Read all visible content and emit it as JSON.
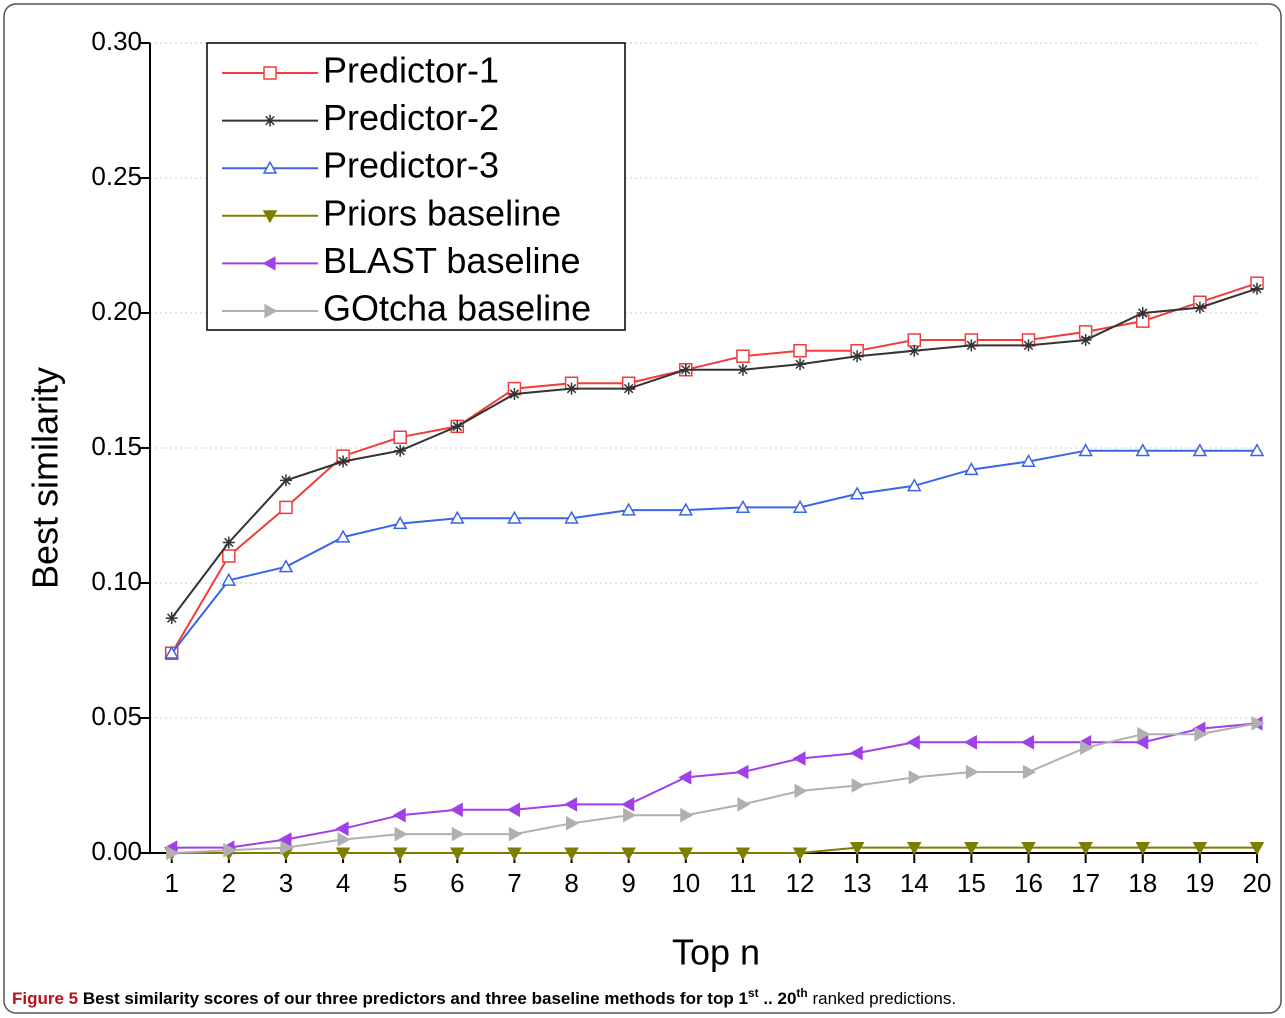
{
  "chart_data": {
    "type": "line",
    "y_label": "Best similarity",
    "x_label": "Top n",
    "x": [
      1,
      2,
      3,
      4,
      5,
      6,
      7,
      8,
      9,
      10,
      11,
      12,
      13,
      14,
      15,
      16,
      17,
      18,
      19,
      20
    ],
    "xlim": [
      0.62,
      20
    ],
    "xticks": [
      1,
      2,
      3,
      4,
      5,
      6,
      7,
      8,
      9,
      10,
      11,
      12,
      13,
      14,
      15,
      16,
      17,
      18,
      19,
      20
    ],
    "ylim": [
      0,
      0.3
    ],
    "yticks": [
      {
        "value": 0,
        "label": "0.00"
      },
      {
        "value": 0.05,
        "label": "0.05"
      },
      {
        "value": 0.1,
        "label": "0.10"
      },
      {
        "value": 0.15,
        "label": "0.15"
      },
      {
        "value": 0.2,
        "label": "0.20"
      },
      {
        "value": 0.25,
        "label": "0.25"
      },
      {
        "value": 0.3,
        "label": "0.30"
      }
    ],
    "grid": true,
    "legend": "top-left",
    "series": [
      {
        "name": "Predictor-1",
        "color": "#f03c3c",
        "marker": "square-open",
        "values": [
          0.074,
          0.11,
          0.128,
          0.147,
          0.154,
          0.158,
          0.172,
          0.174,
          0.174,
          0.179,
          0.184,
          0.186,
          0.186,
          0.19,
          0.19,
          0.19,
          0.193,
          0.197,
          0.204,
          0.211
        ]
      },
      {
        "name": "Predictor-2",
        "color": "#333333",
        "marker": "asterisk",
        "values": [
          0.087,
          0.115,
          0.138,
          0.145,
          0.149,
          0.158,
          0.17,
          0.172,
          0.172,
          0.179,
          0.179,
          0.181,
          0.184,
          0.186,
          0.188,
          0.188,
          0.19,
          0.2,
          0.202,
          0.209
        ]
      },
      {
        "name": "Predictor-3",
        "color": "#3c64e6",
        "marker": "triangle-up-open",
        "values": [
          0.074,
          0.101,
          0.106,
          0.117,
          0.122,
          0.124,
          0.124,
          0.124,
          0.127,
          0.127,
          0.128,
          0.128,
          0.133,
          0.136,
          0.142,
          0.145,
          0.149,
          0.149,
          0.149,
          0.149
        ]
      },
      {
        "name": "Priors baseline",
        "color": "#7d7d00",
        "marker": "triangle-down",
        "values": [
          0,
          0,
          0,
          0,
          0,
          0,
          0,
          0,
          0,
          0,
          0,
          0,
          0.002,
          0.002,
          0.002,
          0.002,
          0.002,
          0.002,
          0.002,
          0.002
        ]
      },
      {
        "name": "BLAST baseline",
        "color": "#a040e8",
        "marker": "triangle-left",
        "values": [
          0.002,
          0.002,
          0.005,
          0.009,
          0.014,
          0.016,
          0.016,
          0.018,
          0.018,
          0.028,
          0.03,
          0.035,
          0.037,
          0.041,
          0.041,
          0.041,
          0.041,
          0.041,
          0.046,
          0.048
        ]
      },
      {
        "name": "GOtcha baseline",
        "color": "#b0b0b0",
        "marker": "triangle-right",
        "values": [
          0,
          0.001,
          0.002,
          0.005,
          0.007,
          0.007,
          0.007,
          0.011,
          0.014,
          0.014,
          0.018,
          0.023,
          0.025,
          0.028,
          0.03,
          0.03,
          0.039,
          0.044,
          0.044,
          0.048
        ]
      }
    ]
  },
  "caption": {
    "label": "Figure 5",
    "text": "Best similarity scores of our three predictors and three baseline methods for top 1",
    "sup1": "st",
    "mid": " .. 20",
    "sup2": "th",
    "end": " ranked predictions."
  }
}
